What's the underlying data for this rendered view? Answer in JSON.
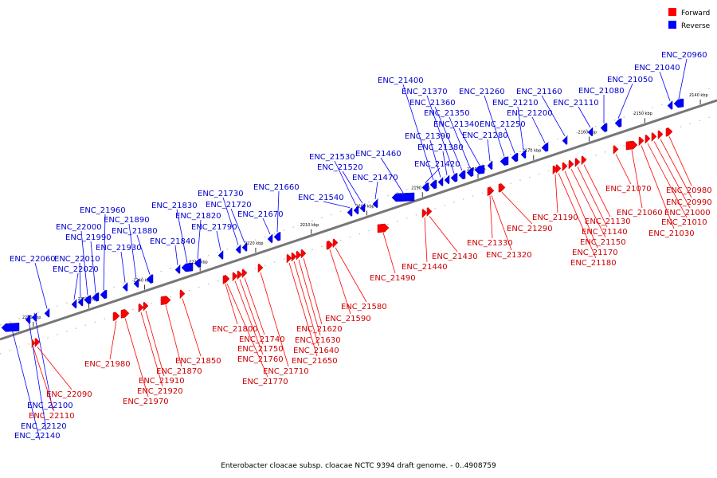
{
  "legend": {
    "forward": {
      "label": "Forward",
      "color": "#ff0000"
    },
    "reverse": {
      "label": "Reverse",
      "color": "#0000ff"
    }
  },
  "caption": "Enterobacter cloacae subsp. cloacae NCTC 9394 draft genome. - 0..4908759",
  "axis": {
    "range_kbp": [
      2137,
      2266
    ],
    "ticks": [
      {
        "kbp": 2140,
        "label": "2140 kbp"
      },
      {
        "kbp": 2150,
        "label": "2150 kbp"
      },
      {
        "kbp": 2160,
        "label": "2160 kbp"
      },
      {
        "kbp": 2170,
        "label": "2170 kbp"
      },
      {
        "kbp": 2180,
        "label": "2180 kbp"
      },
      {
        "kbp": 2190,
        "label": "2190 kbp"
      },
      {
        "kbp": 2200,
        "label": "2200 kbp"
      },
      {
        "kbp": 2210,
        "label": "2210 kbp"
      },
      {
        "kbp": 2220,
        "label": "2220 kbp"
      },
      {
        "kbp": 2230,
        "label": "2230 kbp"
      },
      {
        "kbp": 2240,
        "label": "2240 kbp"
      },
      {
        "kbp": 2250,
        "label": "2250 kbp"
      },
      {
        "kbp": 2260,
        "label": "2260 kbp"
      }
    ]
  },
  "genes": [
    {
      "id": "ENC_20960",
      "strand": "reverse"
    },
    {
      "id": "ENC_21040",
      "strand": "reverse"
    },
    {
      "id": "ENC_21050",
      "strand": "reverse"
    },
    {
      "id": "ENC_21080",
      "strand": "reverse"
    },
    {
      "id": "ENC_21110",
      "strand": "reverse"
    },
    {
      "id": "ENC_21160",
      "strand": "reverse"
    },
    {
      "id": "ENC_21200",
      "strand": "reverse"
    },
    {
      "id": "ENC_21210",
      "strand": "reverse"
    },
    {
      "id": "ENC_21250",
      "strand": "reverse"
    },
    {
      "id": "ENC_21260",
      "strand": "reverse"
    },
    {
      "id": "ENC_21280",
      "strand": "reverse"
    },
    {
      "id": "ENC_21340",
      "strand": "reverse"
    },
    {
      "id": "ENC_21350",
      "strand": "reverse"
    },
    {
      "id": "ENC_21360",
      "strand": "reverse"
    },
    {
      "id": "ENC_21370",
      "strand": "reverse"
    },
    {
      "id": "ENC_21380",
      "strand": "reverse"
    },
    {
      "id": "ENC_21390",
      "strand": "reverse"
    },
    {
      "id": "ENC_21400",
      "strand": "reverse"
    },
    {
      "id": "ENC_21420",
      "strand": "reverse"
    },
    {
      "id": "ENC_21460",
      "strand": "reverse"
    },
    {
      "id": "ENC_21470",
      "strand": "reverse"
    },
    {
      "id": "ENC_21520",
      "strand": "reverse"
    },
    {
      "id": "ENC_21530",
      "strand": "reverse"
    },
    {
      "id": "ENC_21540",
      "strand": "reverse"
    },
    {
      "id": "ENC_21660",
      "strand": "reverse"
    },
    {
      "id": "ENC_21670",
      "strand": "reverse"
    },
    {
      "id": "ENC_21720",
      "strand": "reverse"
    },
    {
      "id": "ENC_21730",
      "strand": "reverse"
    },
    {
      "id": "ENC_21790",
      "strand": "reverse"
    },
    {
      "id": "ENC_21820",
      "strand": "reverse"
    },
    {
      "id": "ENC_21830",
      "strand": "reverse"
    },
    {
      "id": "ENC_21840",
      "strand": "reverse"
    },
    {
      "id": "ENC_21880",
      "strand": "reverse"
    },
    {
      "id": "ENC_21890",
      "strand": "reverse"
    },
    {
      "id": "ENC_21930",
      "strand": "reverse"
    },
    {
      "id": "ENC_21960",
      "strand": "reverse"
    },
    {
      "id": "ENC_21990",
      "strand": "reverse"
    },
    {
      "id": "ENC_22000",
      "strand": "reverse"
    },
    {
      "id": "ENC_22010",
      "strand": "reverse"
    },
    {
      "id": "ENC_22020",
      "strand": "reverse"
    },
    {
      "id": "ENC_22060",
      "strand": "reverse"
    },
    {
      "id": "ENC_22100",
      "strand": "reverse"
    },
    {
      "id": "ENC_22120",
      "strand": "reverse"
    },
    {
      "id": "ENC_22140",
      "strand": "reverse"
    },
    {
      "id": "ENC_20980",
      "strand": "forward"
    },
    {
      "id": "ENC_20990",
      "strand": "forward"
    },
    {
      "id": "ENC_21000",
      "strand": "forward"
    },
    {
      "id": "ENC_21010",
      "strand": "forward"
    },
    {
      "id": "ENC_21030",
      "strand": "forward"
    },
    {
      "id": "ENC_21060",
      "strand": "forward"
    },
    {
      "id": "ENC_21070",
      "strand": "forward"
    },
    {
      "id": "ENC_21130",
      "strand": "forward"
    },
    {
      "id": "ENC_21140",
      "strand": "forward"
    },
    {
      "id": "ENC_21150",
      "strand": "forward"
    },
    {
      "id": "ENC_21170",
      "strand": "forward"
    },
    {
      "id": "ENC_21180",
      "strand": "forward"
    },
    {
      "id": "ENC_21190",
      "strand": "forward"
    },
    {
      "id": "ENC_21290",
      "strand": "forward"
    },
    {
      "id": "ENC_21320",
      "strand": "forward"
    },
    {
      "id": "ENC_21330",
      "strand": "forward"
    },
    {
      "id": "ENC_21430",
      "strand": "forward"
    },
    {
      "id": "ENC_21440",
      "strand": "forward"
    },
    {
      "id": "ENC_21490",
      "strand": "forward"
    },
    {
      "id": "ENC_21580",
      "strand": "forward"
    },
    {
      "id": "ENC_21590",
      "strand": "forward"
    },
    {
      "id": "ENC_21620",
      "strand": "forward"
    },
    {
      "id": "ENC_21630",
      "strand": "forward"
    },
    {
      "id": "ENC_21640",
      "strand": "forward"
    },
    {
      "id": "ENC_21650",
      "strand": "forward"
    },
    {
      "id": "ENC_21710",
      "strand": "forward"
    },
    {
      "id": "ENC_21740",
      "strand": "forward"
    },
    {
      "id": "ENC_21750",
      "strand": "forward"
    },
    {
      "id": "ENC_21760",
      "strand": "forward"
    },
    {
      "id": "ENC_21770",
      "strand": "forward"
    },
    {
      "id": "ENC_21800",
      "strand": "forward"
    },
    {
      "id": "ENC_21850",
      "strand": "forward"
    },
    {
      "id": "ENC_21870",
      "strand": "forward"
    },
    {
      "id": "ENC_21910",
      "strand": "forward"
    },
    {
      "id": "ENC_21920",
      "strand": "forward"
    },
    {
      "id": "ENC_21970",
      "strand": "forward"
    },
    {
      "id": "ENC_21980",
      "strand": "forward"
    },
    {
      "id": "ENC_22090",
      "strand": "forward"
    },
    {
      "id": "ENC_22110",
      "strand": "forward"
    }
  ]
}
